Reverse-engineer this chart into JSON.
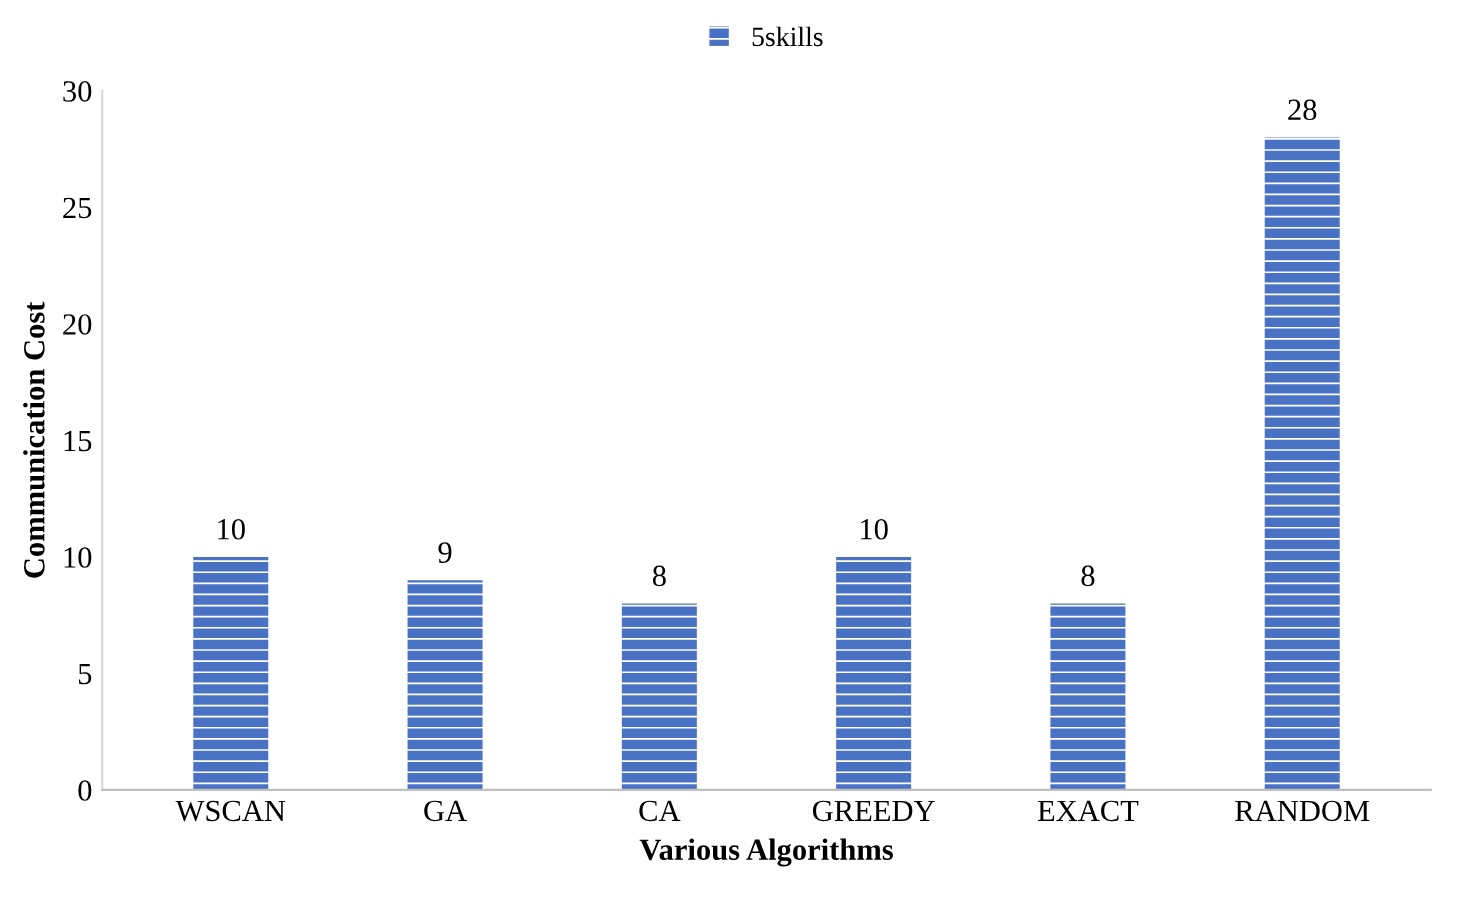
{
  "chart_data": {
    "type": "bar",
    "xlabel": "Various Algorithms",
    "ylabel": "Communication Cost",
    "categories": [
      "WSCAN",
      "GA",
      "CA",
      "GREEDY",
      "EXACT",
      "RANDOM"
    ],
    "series": [
      {
        "name": "5skills",
        "color": "#4a72c4",
        "values": [
          10,
          9,
          8,
          10,
          8,
          28
        ]
      }
    ],
    "ylim": [
      0,
      30
    ],
    "yticks": [
      0,
      5,
      10,
      15,
      20,
      25,
      30
    ],
    "grid": false,
    "legend": "top",
    "data_labels": true
  }
}
